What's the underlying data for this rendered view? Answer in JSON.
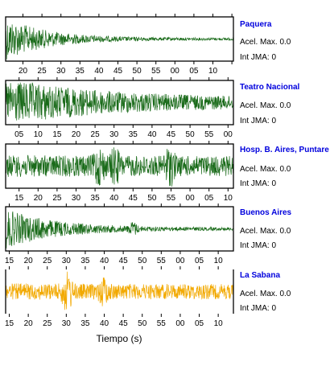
{
  "chart_data": {
    "type": "line",
    "xlabel": "Tiempo (s)",
    "panels": [
      {
        "station": "Paquera",
        "pga_label": "Acel. Max. 0.0",
        "jma_label": "Int JMA: 0",
        "color": "#1a6b1a",
        "tick_labels": [
          "20",
          "25",
          "30",
          "35",
          "40",
          "45",
          "50",
          "55",
          "00",
          "05",
          "10"
        ],
        "first_tick_fraction": 0.076,
        "waveform": {
          "onset": 0.0,
          "peak": 1.0,
          "decay": 0.18,
          "noise": 0.06,
          "bursts": []
        }
      },
      {
        "station": "Teatro Nacional",
        "pga_label": "Acel. Max. 0.0",
        "jma_label": "Int JMA: 0",
        "color": "#1a6b1a",
        "tick_labels": [
          "05",
          "10",
          "15",
          "20",
          "25",
          "30",
          "35",
          "40",
          "45",
          "50",
          "55",
          "00"
        ],
        "first_tick_fraction": 0.059,
        "waveform": {
          "onset": 0.0,
          "peak": 0.95,
          "decay": 0.45,
          "noise": 0.22,
          "bursts": []
        }
      },
      {
        "station": "Hosp. B. Aires, Puntare",
        "pga_label": "Acel. Max. 0.0",
        "jma_label": "Int JMA: 0",
        "color": "#1a6b1a",
        "tick_labels": [
          "15",
          "20",
          "25",
          "30",
          "35",
          "40",
          "45",
          "50",
          "55",
          "00",
          "05",
          "10"
        ],
        "first_tick_fraction": 0.059,
        "waveform": {
          "onset": 0.0,
          "peak": 0.25,
          "decay": 5.0,
          "noise": 0.28,
          "bursts": [
            [
              0.41,
              0.85
            ],
            [
              0.48,
              0.6
            ],
            [
              0.72,
              0.95
            ]
          ]
        }
      },
      {
        "station": "Buenos Aires",
        "pga_label": "Acel. Max. 0.0",
        "jma_label": "Int JMA: 0",
        "color": "#1a6b1a",
        "tick_labels": [
          "15",
          "20",
          "25",
          "30",
          "35",
          "40",
          "45",
          "50",
          "55",
          "00",
          "05",
          "10"
        ],
        "first_tick_fraction": 0.016,
        "waveform": {
          "onset": 0.0,
          "peak": 0.9,
          "decay": 0.22,
          "noise": 0.07,
          "bursts": [
            [
              0.56,
              0.25
            ]
          ]
        }
      },
      {
        "station": "La Sabana",
        "pga_label": "Acel. Max. 0.0",
        "jma_label": "Int JMA: 0",
        "color": "#f2a900",
        "tick_labels": [
          "15",
          "20",
          "25",
          "30",
          "35",
          "40",
          "45",
          "50",
          "55",
          "00",
          "05",
          "10"
        ],
        "first_tick_fraction": 0.016,
        "waveform": {
          "onset": 0.0,
          "peak": 0.2,
          "decay": 5.0,
          "noise": 0.2,
          "bursts": [
            [
              0.27,
              1.0
            ],
            [
              0.43,
              0.45
            ]
          ]
        }
      }
    ]
  }
}
